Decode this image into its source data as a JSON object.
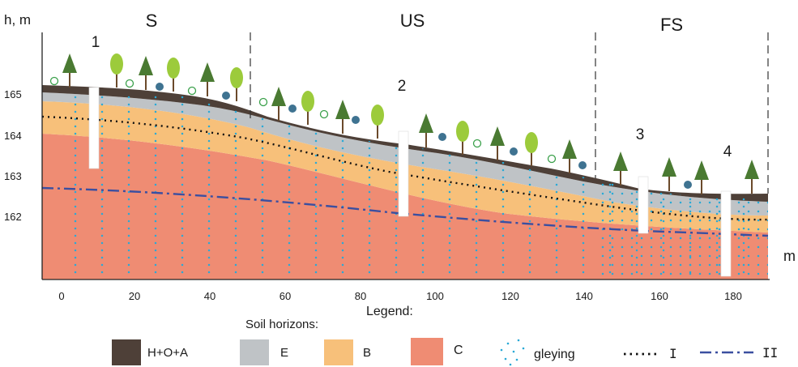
{
  "axes": {
    "y_label": "h, m",
    "x_label": "m",
    "y_ticks": [
      "165",
      "164",
      "163",
      "162"
    ],
    "x_ticks": [
      "0",
      "20",
      "40",
      "60",
      "80",
      "100",
      "120",
      "140",
      "160",
      "180"
    ]
  },
  "zones": [
    "S",
    "US",
    "FS"
  ],
  "profiles": [
    "1",
    "2",
    "3",
    "4"
  ],
  "legend": {
    "title": "Legend:",
    "subtitle": "Soil horizons:",
    "horizons": [
      {
        "label": "H+O+A",
        "color": "#4e4038"
      },
      {
        "label": "E",
        "color": "#bfc3c6"
      },
      {
        "label": "B",
        "color": "#f7c07a"
      },
      {
        "label": "C",
        "color": "#ef8c73"
      }
    ],
    "gleying": "gleying",
    "line_I": "I",
    "line_II": "II"
  },
  "colors": {
    "humus": "#4e4038",
    "eluvial": "#bfc3c6",
    "illuvial": "#f7c07a",
    "parent": "#ef8c73",
    "gley_dots": "#29a9d6",
    "line_II": "#3b4fa0",
    "conifer": "#4a7a32",
    "deciduous": "#9ccb3b",
    "dark_marker": "#3f7391",
    "light_marker": "#3aa04a"
  }
}
